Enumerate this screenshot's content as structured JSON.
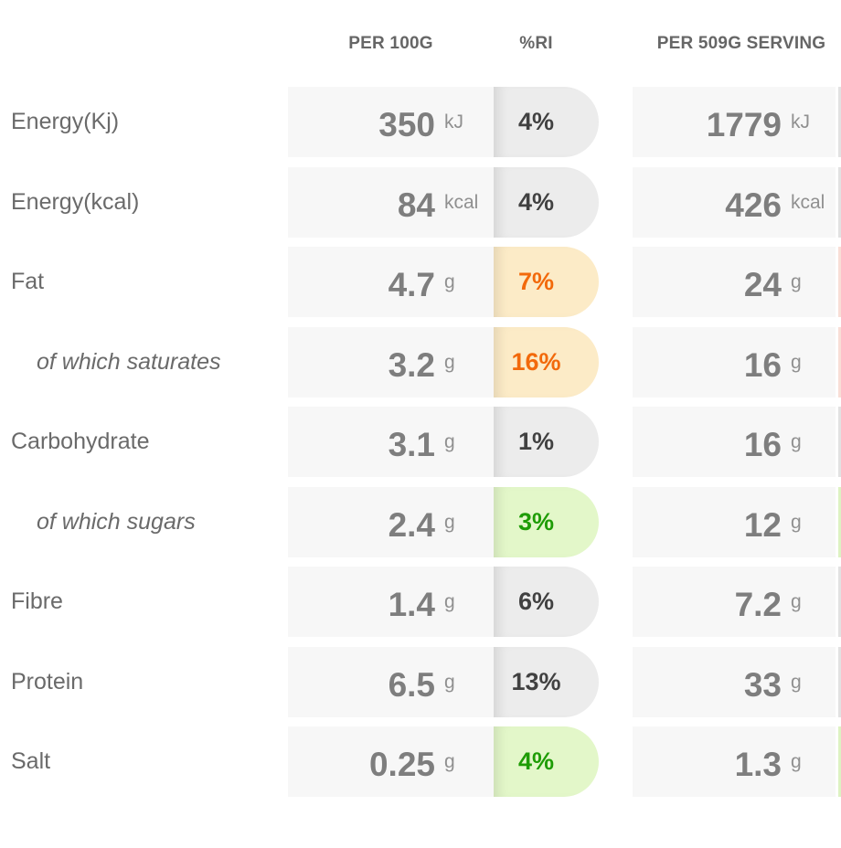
{
  "table": {
    "headers": {
      "per100": "PER 100G",
      "ri": "%RI",
      "serving": "PER 509G SERVING"
    },
    "rows": [
      {
        "label": "Energy(Kj)",
        "indent": false,
        "per100_value": "350",
        "per100_unit": "kJ",
        "ri_value": "4%",
        "ri_tone": "gray",
        "serving_value": "1779",
        "serving_unit": "kJ",
        "edge_tone": "gray"
      },
      {
        "label": "Energy(kcal)",
        "indent": false,
        "per100_value": "84",
        "per100_unit": "kcal",
        "ri_value": "4%",
        "ri_tone": "gray",
        "serving_value": "426",
        "serving_unit": "kcal",
        "edge_tone": "gray"
      },
      {
        "label": "Fat",
        "indent": false,
        "per100_value": "4.7",
        "per100_unit": "g",
        "ri_value": "7%",
        "ri_tone": "orange",
        "serving_value": "24",
        "serving_unit": "g",
        "edge_tone": "red"
      },
      {
        "label": "of which saturates",
        "indent": true,
        "per100_value": "3.2",
        "per100_unit": "g",
        "ri_value": "16%",
        "ri_tone": "orange",
        "serving_value": "16",
        "serving_unit": "g",
        "edge_tone": "red"
      },
      {
        "label": "Carbohydrate",
        "indent": false,
        "per100_value": "3.1",
        "per100_unit": "g",
        "ri_value": "1%",
        "ri_tone": "gray",
        "serving_value": "16",
        "serving_unit": "g",
        "edge_tone": "gray"
      },
      {
        "label": "of which sugars",
        "indent": true,
        "per100_value": "2.4",
        "per100_unit": "g",
        "ri_value": "3%",
        "ri_tone": "green",
        "serving_value": "12",
        "serving_unit": "g",
        "edge_tone": "green"
      },
      {
        "label": "Fibre",
        "indent": false,
        "per100_value": "1.4",
        "per100_unit": "g",
        "ri_value": "6%",
        "ri_tone": "gray",
        "serving_value": "7.2",
        "serving_unit": "g",
        "edge_tone": "gray"
      },
      {
        "label": "Protein",
        "indent": false,
        "per100_value": "6.5",
        "per100_unit": "g",
        "ri_value": "13%",
        "ri_tone": "gray",
        "serving_value": "33",
        "serving_unit": "g",
        "edge_tone": "gray"
      },
      {
        "label": "Salt",
        "indent": false,
        "per100_value": "0.25",
        "per100_unit": "g",
        "ri_value": "4%",
        "ri_tone": "green",
        "serving_value": "1.3",
        "serving_unit": "g",
        "edge_tone": "green"
      }
    ]
  },
  "colors": {
    "cell-bg": "#f7f7f7",
    "pill-gray-bg": "#ececec",
    "pill-orange-bg": "#fcebc7",
    "pill-green-bg": "#e3f7c9",
    "ri-gray-text": "#414141",
    "ri-orange-text": "#f2690b",
    "ri-green-text": "#1e9c05",
    "num-text": "#7e7e7e",
    "unit-text": "#909090",
    "label-text": "#6a6a6a",
    "header-text": "#666666",
    "edge-gray": "#e2e2e2",
    "edge-red": "#f8ded6",
    "edge-green": "#ddf2c2"
  }
}
